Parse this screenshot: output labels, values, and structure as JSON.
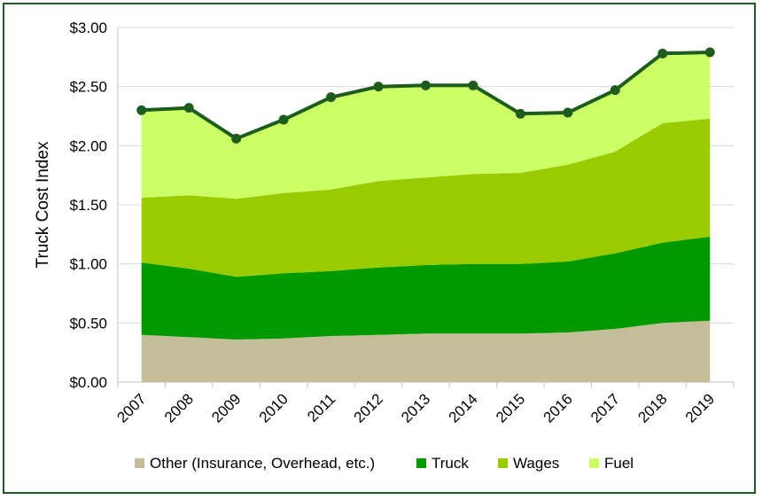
{
  "chart_data": {
    "type": "area",
    "title": "",
    "xlabel": "",
    "ylabel": "Truck Cost Index",
    "ylim": [
      0,
      3
    ],
    "yticks": [
      "$0.00",
      "$0.50",
      "$1.00",
      "$1.50",
      "$2.00",
      "$2.50",
      "$3.00"
    ],
    "ytick_values": [
      0,
      0.5,
      1.0,
      1.5,
      2.0,
      2.5,
      3.0
    ],
    "categories": [
      "2007",
      "2008",
      "2009",
      "2010",
      "2011",
      "2012",
      "2013",
      "2014",
      "2015",
      "2016",
      "2017",
      "2018",
      "2019"
    ],
    "stacked": true,
    "grid": true,
    "legend_position": "bottom",
    "series": [
      {
        "name": "Other (Insurance, Overhead, etc.)",
        "color": "#c4bd97",
        "values": [
          0.4,
          0.38,
          0.36,
          0.37,
          0.39,
          0.4,
          0.41,
          0.41,
          0.41,
          0.42,
          0.45,
          0.5,
          0.52
        ]
      },
      {
        "name": "Truck",
        "color": "#009900",
        "values": [
          0.61,
          0.58,
          0.53,
          0.55,
          0.55,
          0.57,
          0.58,
          0.59,
          0.59,
          0.6,
          0.64,
          0.68,
          0.71
        ]
      },
      {
        "name": "Wages",
        "color": "#99cc00",
        "values": [
          0.55,
          0.62,
          0.66,
          0.68,
          0.69,
          0.73,
          0.74,
          0.76,
          0.77,
          0.82,
          0.86,
          1.01,
          1.0
        ]
      },
      {
        "name": "Fuel",
        "color": "#ccff66",
        "values": [
          0.74,
          0.74,
          0.51,
          0.62,
          0.78,
          0.8,
          0.78,
          0.75,
          0.5,
          0.44,
          0.52,
          0.59,
          0.56
        ]
      }
    ],
    "total_line": {
      "color": "#1e5c1e",
      "values": [
        2.3,
        2.32,
        2.06,
        2.22,
        2.41,
        2.5,
        2.51,
        2.51,
        2.27,
        2.28,
        2.47,
        2.78,
        2.79
      ]
    },
    "gridline_color": "#d9d9d9",
    "axis_color": "#bfbfbf"
  }
}
